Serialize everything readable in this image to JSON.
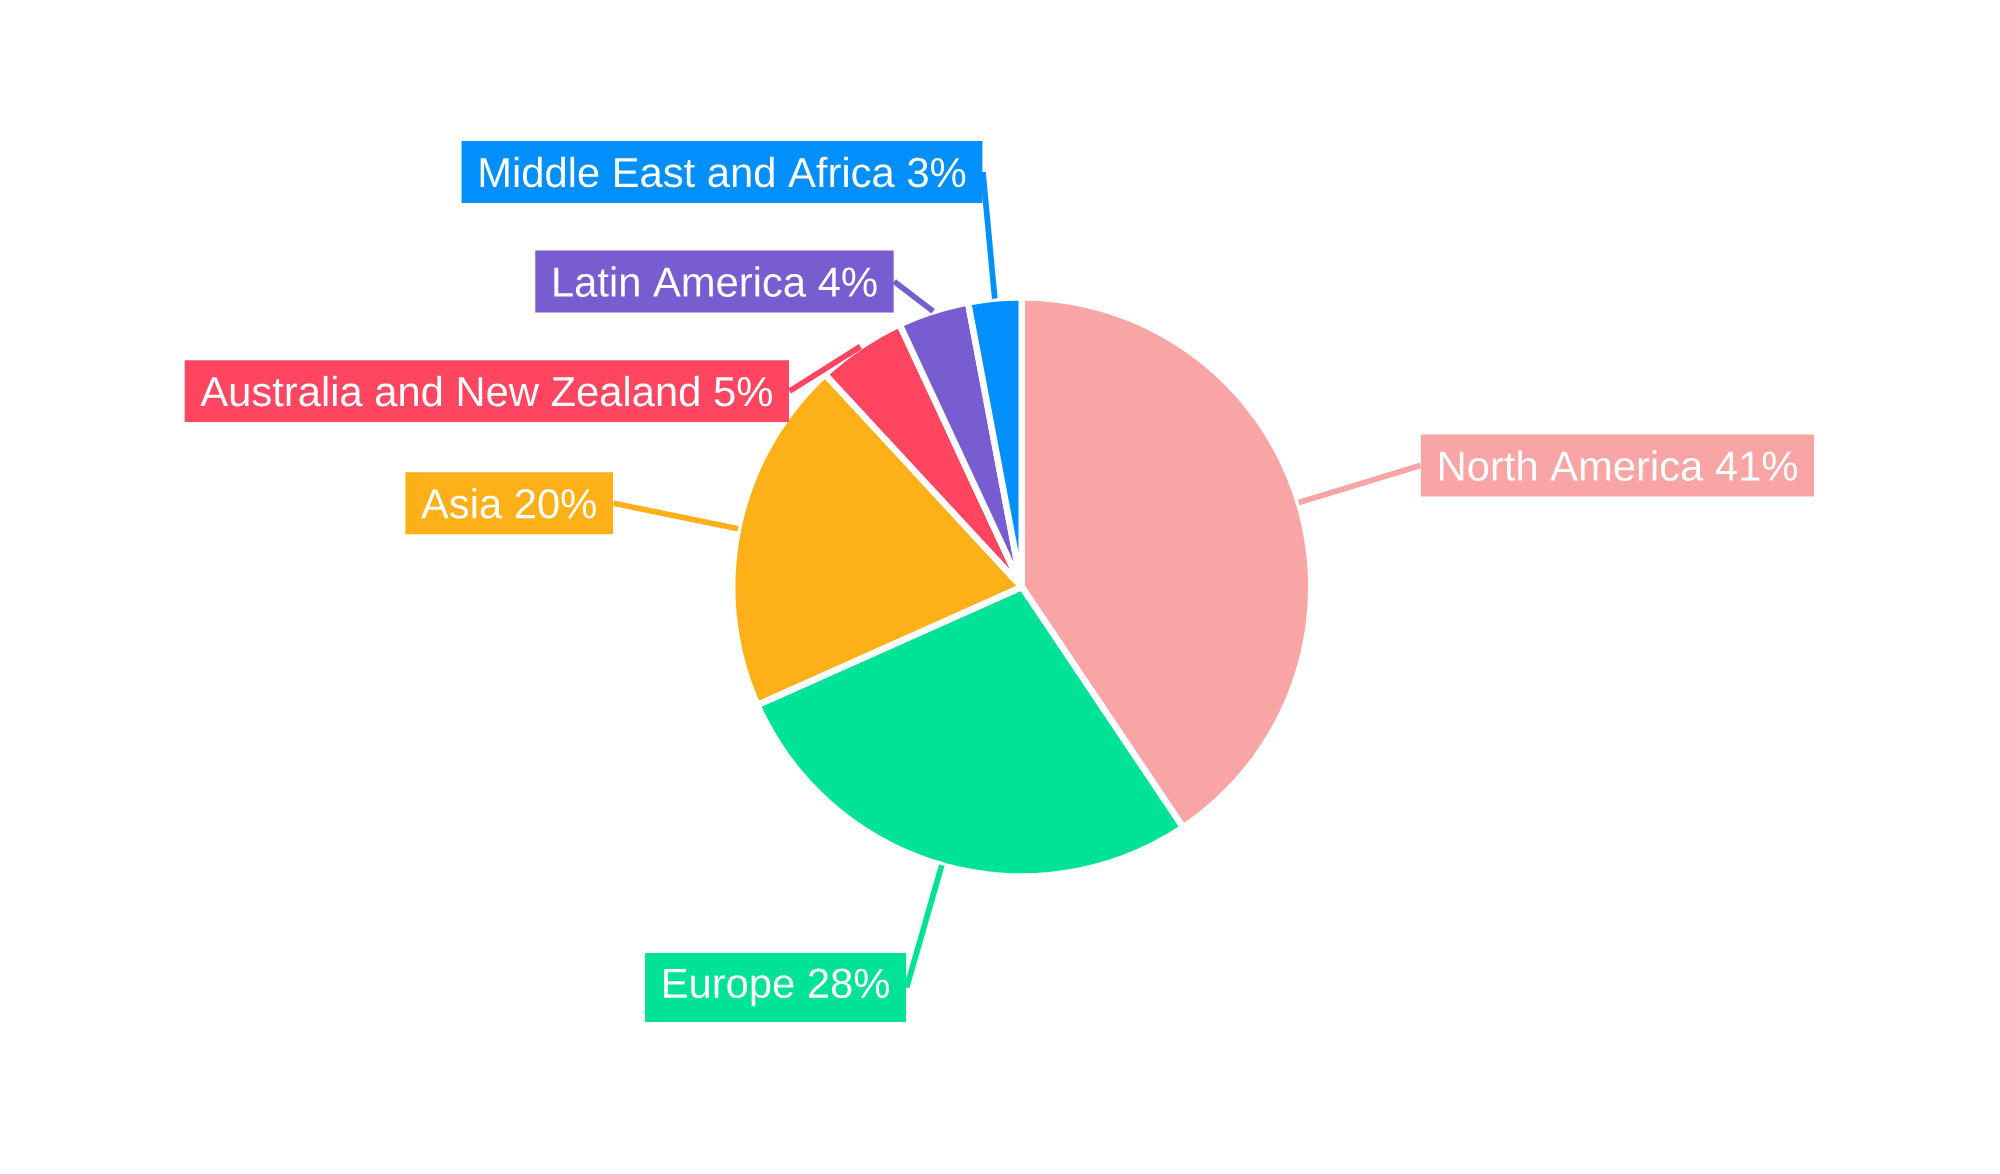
{
  "chart_data": {
    "type": "pie",
    "categories": [
      "North America",
      "Europe",
      "Asia",
      "Australia and New Zealand",
      "Latin America",
      "Middle East and Africa"
    ],
    "values": [
      41,
      28,
      20,
      5,
      4,
      3
    ],
    "value_labels": [
      "41%",
      "28%",
      "20%",
      "5%",
      "4%",
      "3%"
    ],
    "colors": [
      "#f9a5a6",
      "#00e396",
      "#feb019",
      "#ff4560",
      "#775dd0",
      "#008ffb"
    ]
  }
}
